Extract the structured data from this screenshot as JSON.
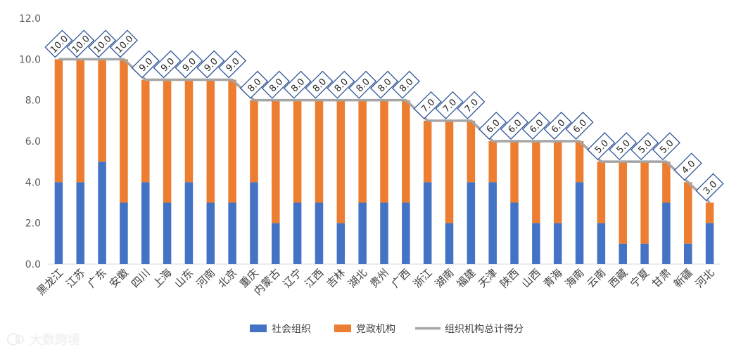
{
  "chart_data": {
    "type": "bar",
    "stacked": true,
    "categories": [
      "黑龙江",
      "江苏",
      "广东",
      "安徽",
      "四川",
      "上海",
      "山东",
      "河南",
      "北京",
      "重庆",
      "内蒙古",
      "辽宁",
      "江西",
      "吉林",
      "湖北",
      "贵州",
      "广西",
      "浙江",
      "湖南",
      "福建",
      "天津",
      "陕西",
      "山西",
      "青海",
      "海南",
      "云南",
      "西藏",
      "宁夏",
      "甘肃",
      "新疆",
      "河北"
    ],
    "series": [
      {
        "name": "社会组织",
        "color": "#4472C4",
        "values": [
          4,
          4,
          5,
          3,
          4,
          3,
          4,
          3,
          3,
          4,
          2,
          3,
          3,
          2,
          3,
          3,
          3,
          4,
          2,
          4,
          4,
          3,
          2,
          2,
          4,
          2,
          1,
          1,
          3,
          1,
          2
        ]
      },
      {
        "name": "党政机构",
        "color": "#ED7D31",
        "values": [
          6,
          6,
          5,
          7,
          5,
          6,
          5,
          6,
          6,
          4,
          6,
          5,
          5,
          6,
          5,
          5,
          5,
          3,
          5,
          3,
          2,
          3,
          4,
          4,
          2,
          3,
          4,
          4,
          2,
          3,
          1
        ]
      }
    ],
    "line": {
      "name": "组织机构总计得分",
      "color": "#A5A5A5",
      "values": [
        10,
        10,
        10,
        10,
        9,
        9,
        9,
        9,
        9,
        8,
        8,
        8,
        8,
        8,
        8,
        8,
        8,
        7,
        7,
        7,
        6,
        6,
        6,
        6,
        6,
        5,
        5,
        5,
        5,
        4,
        3
      ]
    },
    "data_labels": [
      "10.0",
      "10.0",
      "10.0",
      "10.0",
      "9.0",
      "9.0",
      "9.0",
      "9.0",
      "9.0",
      "8.0",
      "8.0",
      "8.0",
      "8.0",
      "8.0",
      "8.0",
      "8.0",
      "8.0",
      "7.0",
      "7.0",
      "7.0",
      "6.0",
      "6.0",
      "6.0",
      "6.0",
      "6.0",
      "5.0",
      "5.0",
      "5.0",
      "5.0",
      "4.0",
      "3.0"
    ],
    "yticks": [
      "0.0",
      "2.0",
      "4.0",
      "6.0",
      "8.0",
      "10.0",
      "12.0"
    ],
    "ylim": [
      0,
      12
    ],
    "title": "",
    "xlabel": "",
    "ylabel": "",
    "legend_position": "bottom"
  },
  "watermark": {
    "text": "大数跨境",
    "icon": "logo-icon"
  }
}
